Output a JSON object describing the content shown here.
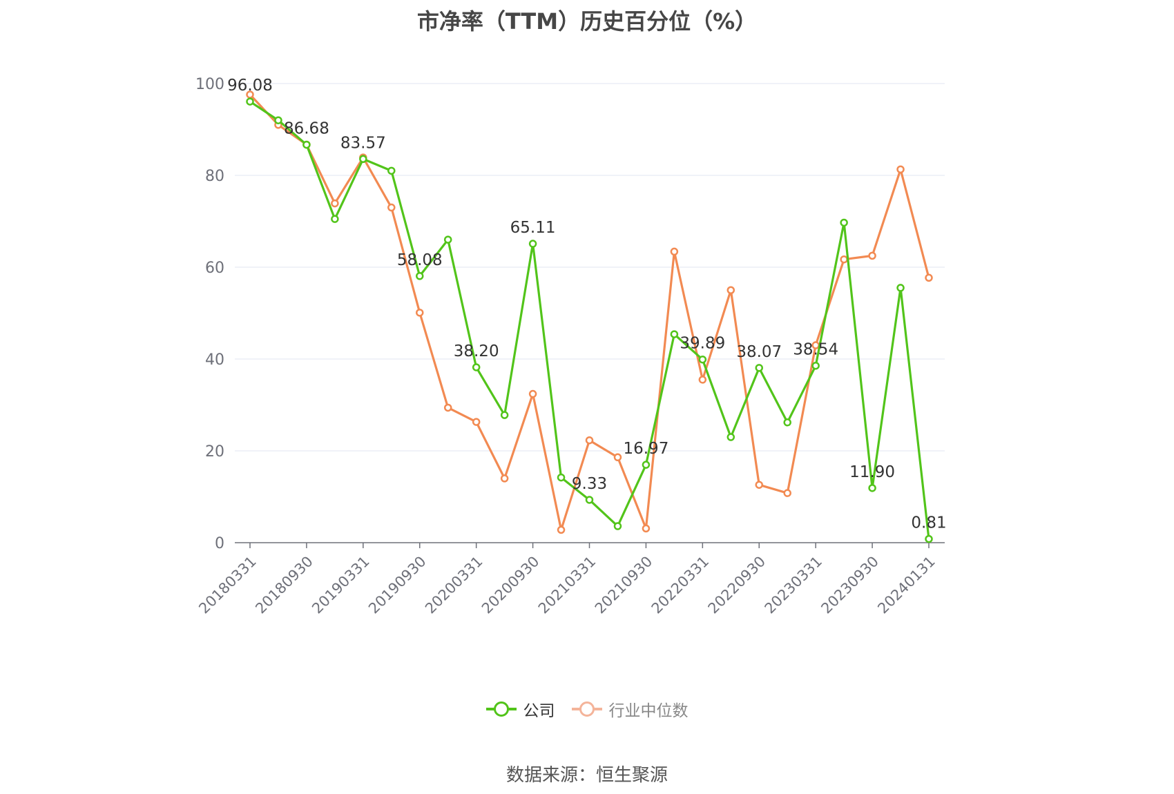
{
  "chart_data": {
    "type": "line",
    "title": "市净率（TTM）历史百分位（%）",
    "xlabel": "",
    "ylabel": "",
    "ylim": [
      0,
      100
    ],
    "yticks": [
      0,
      20,
      40,
      60,
      80,
      100
    ],
    "grid": true,
    "legend_position": "bottom-center",
    "x": [
      "20180331",
      "20180630",
      "20180930",
      "20181231",
      "20190331",
      "20190630",
      "20190930",
      "20191231",
      "20200331",
      "20200630",
      "20200930",
      "20201231",
      "20210331",
      "20210630",
      "20210930",
      "20211231",
      "20220331",
      "20220630",
      "20220930",
      "20221231",
      "20230331",
      "20230630",
      "20230930",
      "20231231",
      "20240131"
    ],
    "x_tick_labels": [
      "20180331",
      "20180930",
      "20190331",
      "20190930",
      "20200331",
      "20200930",
      "20210331",
      "20210930",
      "20220331",
      "20220930",
      "20230331",
      "20230930",
      "20240131"
    ],
    "series": [
      {
        "name": "公司",
        "color": "#52c41a",
        "values": [
          96.08,
          92.0,
          86.68,
          70.5,
          83.57,
          81.0,
          58.08,
          66.0,
          38.2,
          27.8,
          65.11,
          14.2,
          9.33,
          3.6,
          16.97,
          45.4,
          39.89,
          23.0,
          38.07,
          26.2,
          38.54,
          69.7,
          11.9,
          55.5,
          0.81
        ],
        "value_labels": [
          "96.08",
          null,
          "86.68",
          null,
          "83.57",
          null,
          "58.08",
          null,
          "38.20",
          null,
          "65.11",
          null,
          "9.33",
          null,
          "16.97",
          null,
          "39.89",
          null,
          "38.07",
          null,
          "38.54",
          null,
          "11.90",
          null,
          "0.81"
        ]
      },
      {
        "name": "行业中位数",
        "color": "#f28a52",
        "values": [
          97.6,
          91.0,
          86.7,
          73.9,
          83.9,
          73.0,
          50.1,
          29.4,
          26.3,
          14.0,
          32.4,
          2.8,
          22.3,
          18.6,
          3.1,
          63.4,
          35.5,
          55.0,
          12.6,
          10.8,
          43.0,
          61.7,
          62.5,
          81.3,
          57.7
        ]
      }
    ]
  },
  "legend": {
    "company_label": "公司",
    "industry_label": "行业中位数",
    "company_color": "#52c41a",
    "industry_color": "#f4b49a",
    "industry_text_color": "#888888",
    "company_text_color": "#333333"
  },
  "source_note": "数据来源：恒生聚源"
}
